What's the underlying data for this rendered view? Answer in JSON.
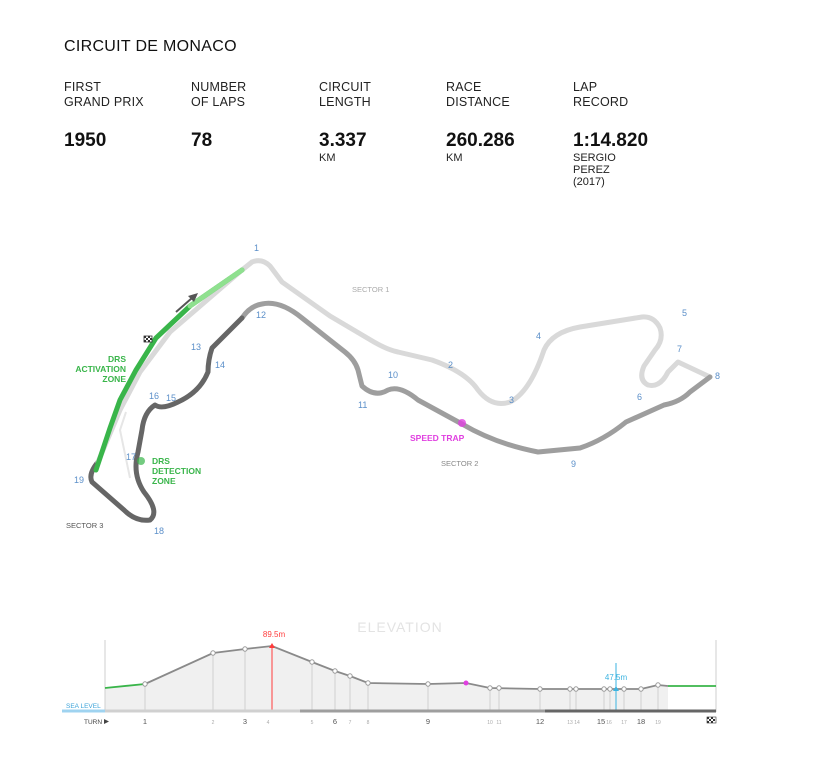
{
  "title": "CIRCUIT DE MONACO",
  "stats": [
    {
      "label_line1": "FIRST",
      "label_line2": "GRAND PRIX",
      "value": "1950",
      "unit": []
    },
    {
      "label_line1": "NUMBER",
      "label_line2": "OF LAPS",
      "value": "78",
      "unit": []
    },
    {
      "label_line1": "CIRCUIT",
      "label_line2": "LENGTH",
      "value": "3.337",
      "unit": [
        "KM"
      ]
    },
    {
      "label_line1": "RACE",
      "label_line2": "DISTANCE",
      "value": "260.286",
      "unit": [
        "KM"
      ]
    },
    {
      "label_line1": "LAP",
      "label_line2": "RECORD",
      "value": "1:14.820",
      "unit": [
        "SERGIO",
        "PEREZ",
        "(2017)"
      ]
    }
  ],
  "map": {
    "sector1": "SECTOR 1",
    "sector2": "SECTOR 2",
    "sector3": "SECTOR 3",
    "speed_trap": "SPEED TRAP",
    "drs_activation": [
      "DRS",
      "ACTIVATION",
      "ZONE"
    ],
    "drs_detection": [
      "DRS",
      "DETECTION",
      "ZONE"
    ],
    "turns": [
      "1",
      "2",
      "3",
      "4",
      "5",
      "6",
      "7",
      "8",
      "9",
      "10",
      "11",
      "12",
      "13",
      "14",
      "15",
      "16",
      "17",
      "18",
      "19"
    ],
    "colors": {
      "sector1": "#d9d9d9",
      "sector2": "#9e9e9e",
      "sector3": "#666666",
      "drs": "#39b54a",
      "speed_trap": "#e040e0",
      "turn_label": "#5b8fc9"
    }
  },
  "elevation": {
    "heading": "ELEVATION",
    "sea_level": "SEA LEVEL",
    "turn_label": "TURN",
    "max_label": "89.5m",
    "min_label": "47.5m",
    "turn_ticks": [
      "1",
      "2",
      "3",
      "4",
      "5",
      "6",
      "7",
      "8",
      "9",
      "10",
      "11",
      "12",
      "13",
      "14",
      "15",
      "16",
      "17",
      "18",
      "19"
    ]
  }
}
